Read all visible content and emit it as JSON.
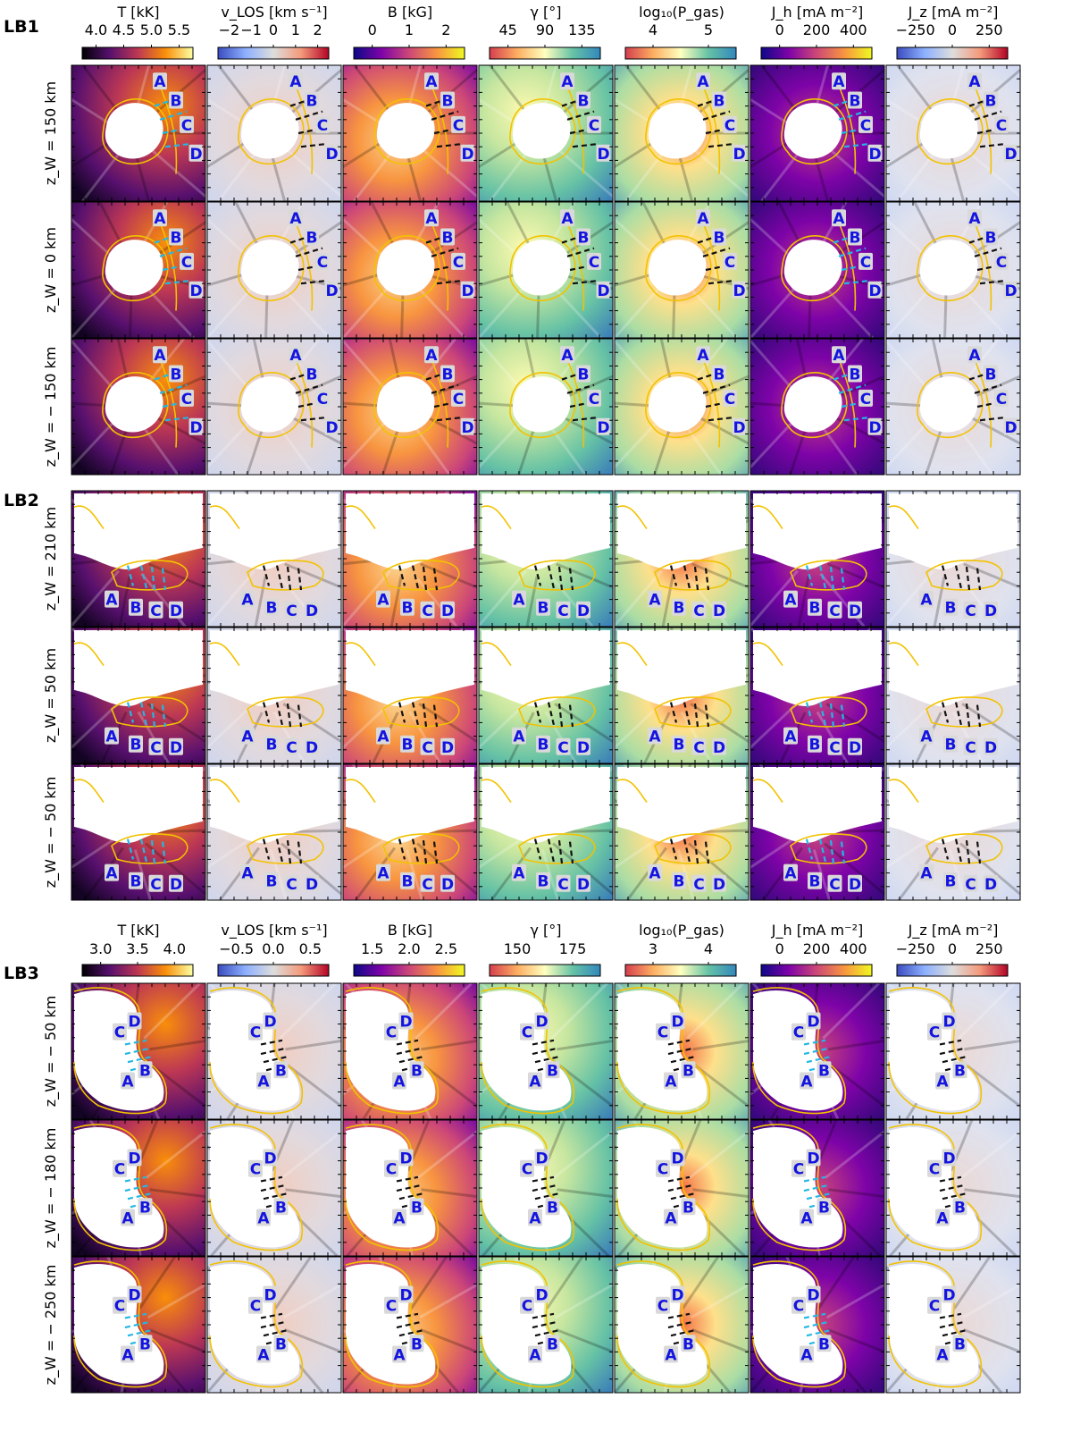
{
  "groups": [
    {
      "label": "LB1",
      "rows": [
        "z_W = 150 km",
        "z_W = 0 km",
        "z_W = − 150 km"
      ],
      "colorbars": [
        {
          "title": "T [kK]",
          "ticks": [
            "4.0",
            "4.5",
            "5.0",
            "5.5"
          ],
          "cmap": "inferno"
        },
        {
          "title": "v_LOS [km s⁻¹]",
          "ticks": [
            "−2",
            "−1",
            "0",
            "1",
            "2"
          ],
          "cmap": "coolwarm"
        },
        {
          "title": "B [kG]",
          "ticks": [
            "0",
            "1",
            "2"
          ],
          "cmap": "plasma"
        },
        {
          "title": "γ [°]",
          "ticks": [
            "45",
            "90",
            "135"
          ],
          "cmap": "spectral"
        },
        {
          "title": "log₁₀(P_gas)",
          "ticks": [
            "4",
            "5"
          ],
          "cmap": "spectral"
        },
        {
          "title": "J_h [mA m⁻²]",
          "ticks": [
            "0",
            "200",
            "400"
          ],
          "cmap": "plasma"
        },
        {
          "title": "J_z [mA m⁻²]",
          "ticks": [
            "−250",
            "0",
            "250"
          ],
          "cmap": "coolwarm"
        }
      ]
    },
    {
      "label": "LB2",
      "rows": [
        "z_W = 210 km",
        "z_W = 50 km",
        "z_W = − 50 km"
      ],
      "colorbars": []
    },
    {
      "label": "LB3",
      "rows": [
        "z_W = − 50 km",
        "z_W = − 180 km",
        "z_W = − 250 km"
      ],
      "colorbars": [
        {
          "title": "T [kK]",
          "ticks": [
            "3.0",
            "3.5",
            "4.0"
          ],
          "cmap": "inferno"
        },
        {
          "title": "v_LOS [km s⁻¹]",
          "ticks": [
            "−0.5",
            "0.0",
            "0.5"
          ],
          "cmap": "coolwarm"
        },
        {
          "title": "B [kG]",
          "ticks": [
            "1.5",
            "2.0",
            "2.5"
          ],
          "cmap": "plasma"
        },
        {
          "title": "γ [°]",
          "ticks": [
            "150",
            "175"
          ],
          "cmap": "spectral"
        },
        {
          "title": "log₁₀(P_gas)",
          "ticks": [
            "3",
            "4"
          ],
          "cmap": "spectral"
        },
        {
          "title": "J_h [mA m⁻²]",
          "ticks": [
            "0",
            "200",
            "400"
          ],
          "cmap": "plasma"
        },
        {
          "title": "J_z [mA m⁻²]",
          "ticks": [
            "−250",
            "0",
            "250"
          ],
          "cmap": "coolwarm"
        }
      ]
    }
  ],
  "cut_markers": [
    "A",
    "B",
    "C",
    "D"
  ],
  "colors": {
    "contour": "#f2c200",
    "marker_text": "#1414e0",
    "marker_box": "#d9d9d9",
    "cut_cyan": "#22b8e6",
    "cut_black": "#111111"
  }
}
